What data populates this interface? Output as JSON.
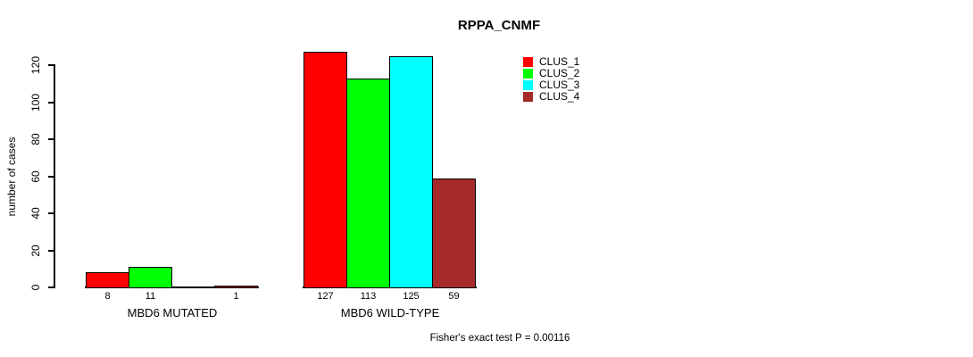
{
  "figure": {
    "background_color": "#ffffff",
    "text_color": "#000000"
  },
  "chart_data": {
    "type": "bar",
    "title": "RPPA_CNMF",
    "xlabel": "",
    "ylabel": "number of cases",
    "ylim": [
      0,
      130
    ],
    "yticks": [
      0,
      20,
      40,
      60,
      80,
      100,
      120
    ],
    "grid": false,
    "categories": [
      "MBD6 MUTATED",
      "MBD6 WILD-TYPE"
    ],
    "series": [
      {
        "name": "CLUS_1",
        "color": "#ff0000",
        "values": [
          8,
          127
        ]
      },
      {
        "name": "CLUS_2",
        "color": "#00ff00",
        "values": [
          11,
          113
        ]
      },
      {
        "name": "CLUS_3",
        "color": "#00ffff",
        "values": [
          0,
          125
        ]
      },
      {
        "name": "CLUS_4",
        "color": "#a52a2a",
        "values": [
          1,
          59
        ]
      }
    ],
    "bar_value_labels": [
      [
        "8",
        "11",
        "",
        "1"
      ],
      [
        "127",
        "113",
        "125",
        "59"
      ]
    ],
    "legend_position": "top-right",
    "annotation": "Fisher's exact test P = 0.00116"
  }
}
